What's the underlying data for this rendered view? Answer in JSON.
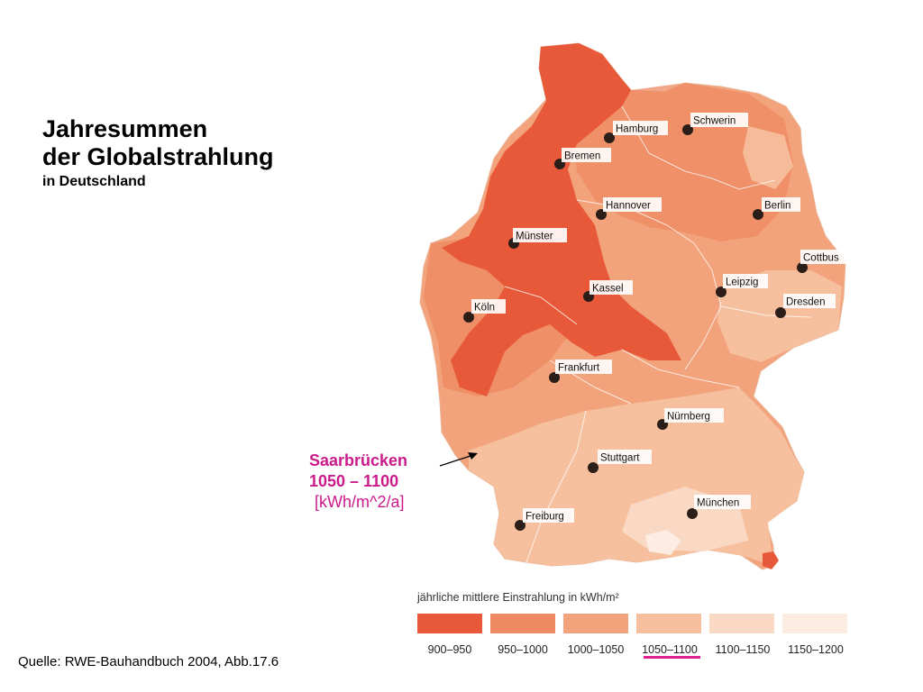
{
  "title": {
    "line1": "Jahresummen",
    "line2": "der Globalstrahlung",
    "subtitle": "in Deutschland"
  },
  "callout": {
    "city": "Saarbrücken",
    "range": "1050 – 1100",
    "unit": "[kWh/m^2/a]",
    "color": "#cc1a8a"
  },
  "source": "Quelle: RWE-Bauhandbuch 2004, Abb.17.6",
  "legend": {
    "title": "jährliche mittlere Einstrahlung in kWh/m²",
    "highlighted_index": 3,
    "highlight_color": "#e0208f",
    "items": [
      {
        "label": "900–950",
        "color": "#e8593a"
      },
      {
        "label": "950–1000",
        "color": "#ee8a62"
      },
      {
        "label": "1000–1050",
        "color": "#f2a37c"
      },
      {
        "label": "1050–1100",
        "color": "#f6c09f"
      },
      {
        "label": "1100–1150",
        "color": "#fad9c4"
      },
      {
        "label": "1150–1200",
        "color": "#fdece1"
      }
    ]
  },
  "cities": [
    {
      "name": "Hamburg"
    },
    {
      "name": "Schwerin"
    },
    {
      "name": "Bremen"
    },
    {
      "name": "Hannover"
    },
    {
      "name": "Berlin"
    },
    {
      "name": "Münster"
    },
    {
      "name": "Cottbus"
    },
    {
      "name": "Leipzig"
    },
    {
      "name": "Kassel"
    },
    {
      "name": "Dresden"
    },
    {
      "name": "Köln"
    },
    {
      "name": "Frankfurt"
    },
    {
      "name": "Nürnberg"
    },
    {
      "name": "Stuttgart"
    },
    {
      "name": "München"
    },
    {
      "name": "Freiburg"
    }
  ]
}
